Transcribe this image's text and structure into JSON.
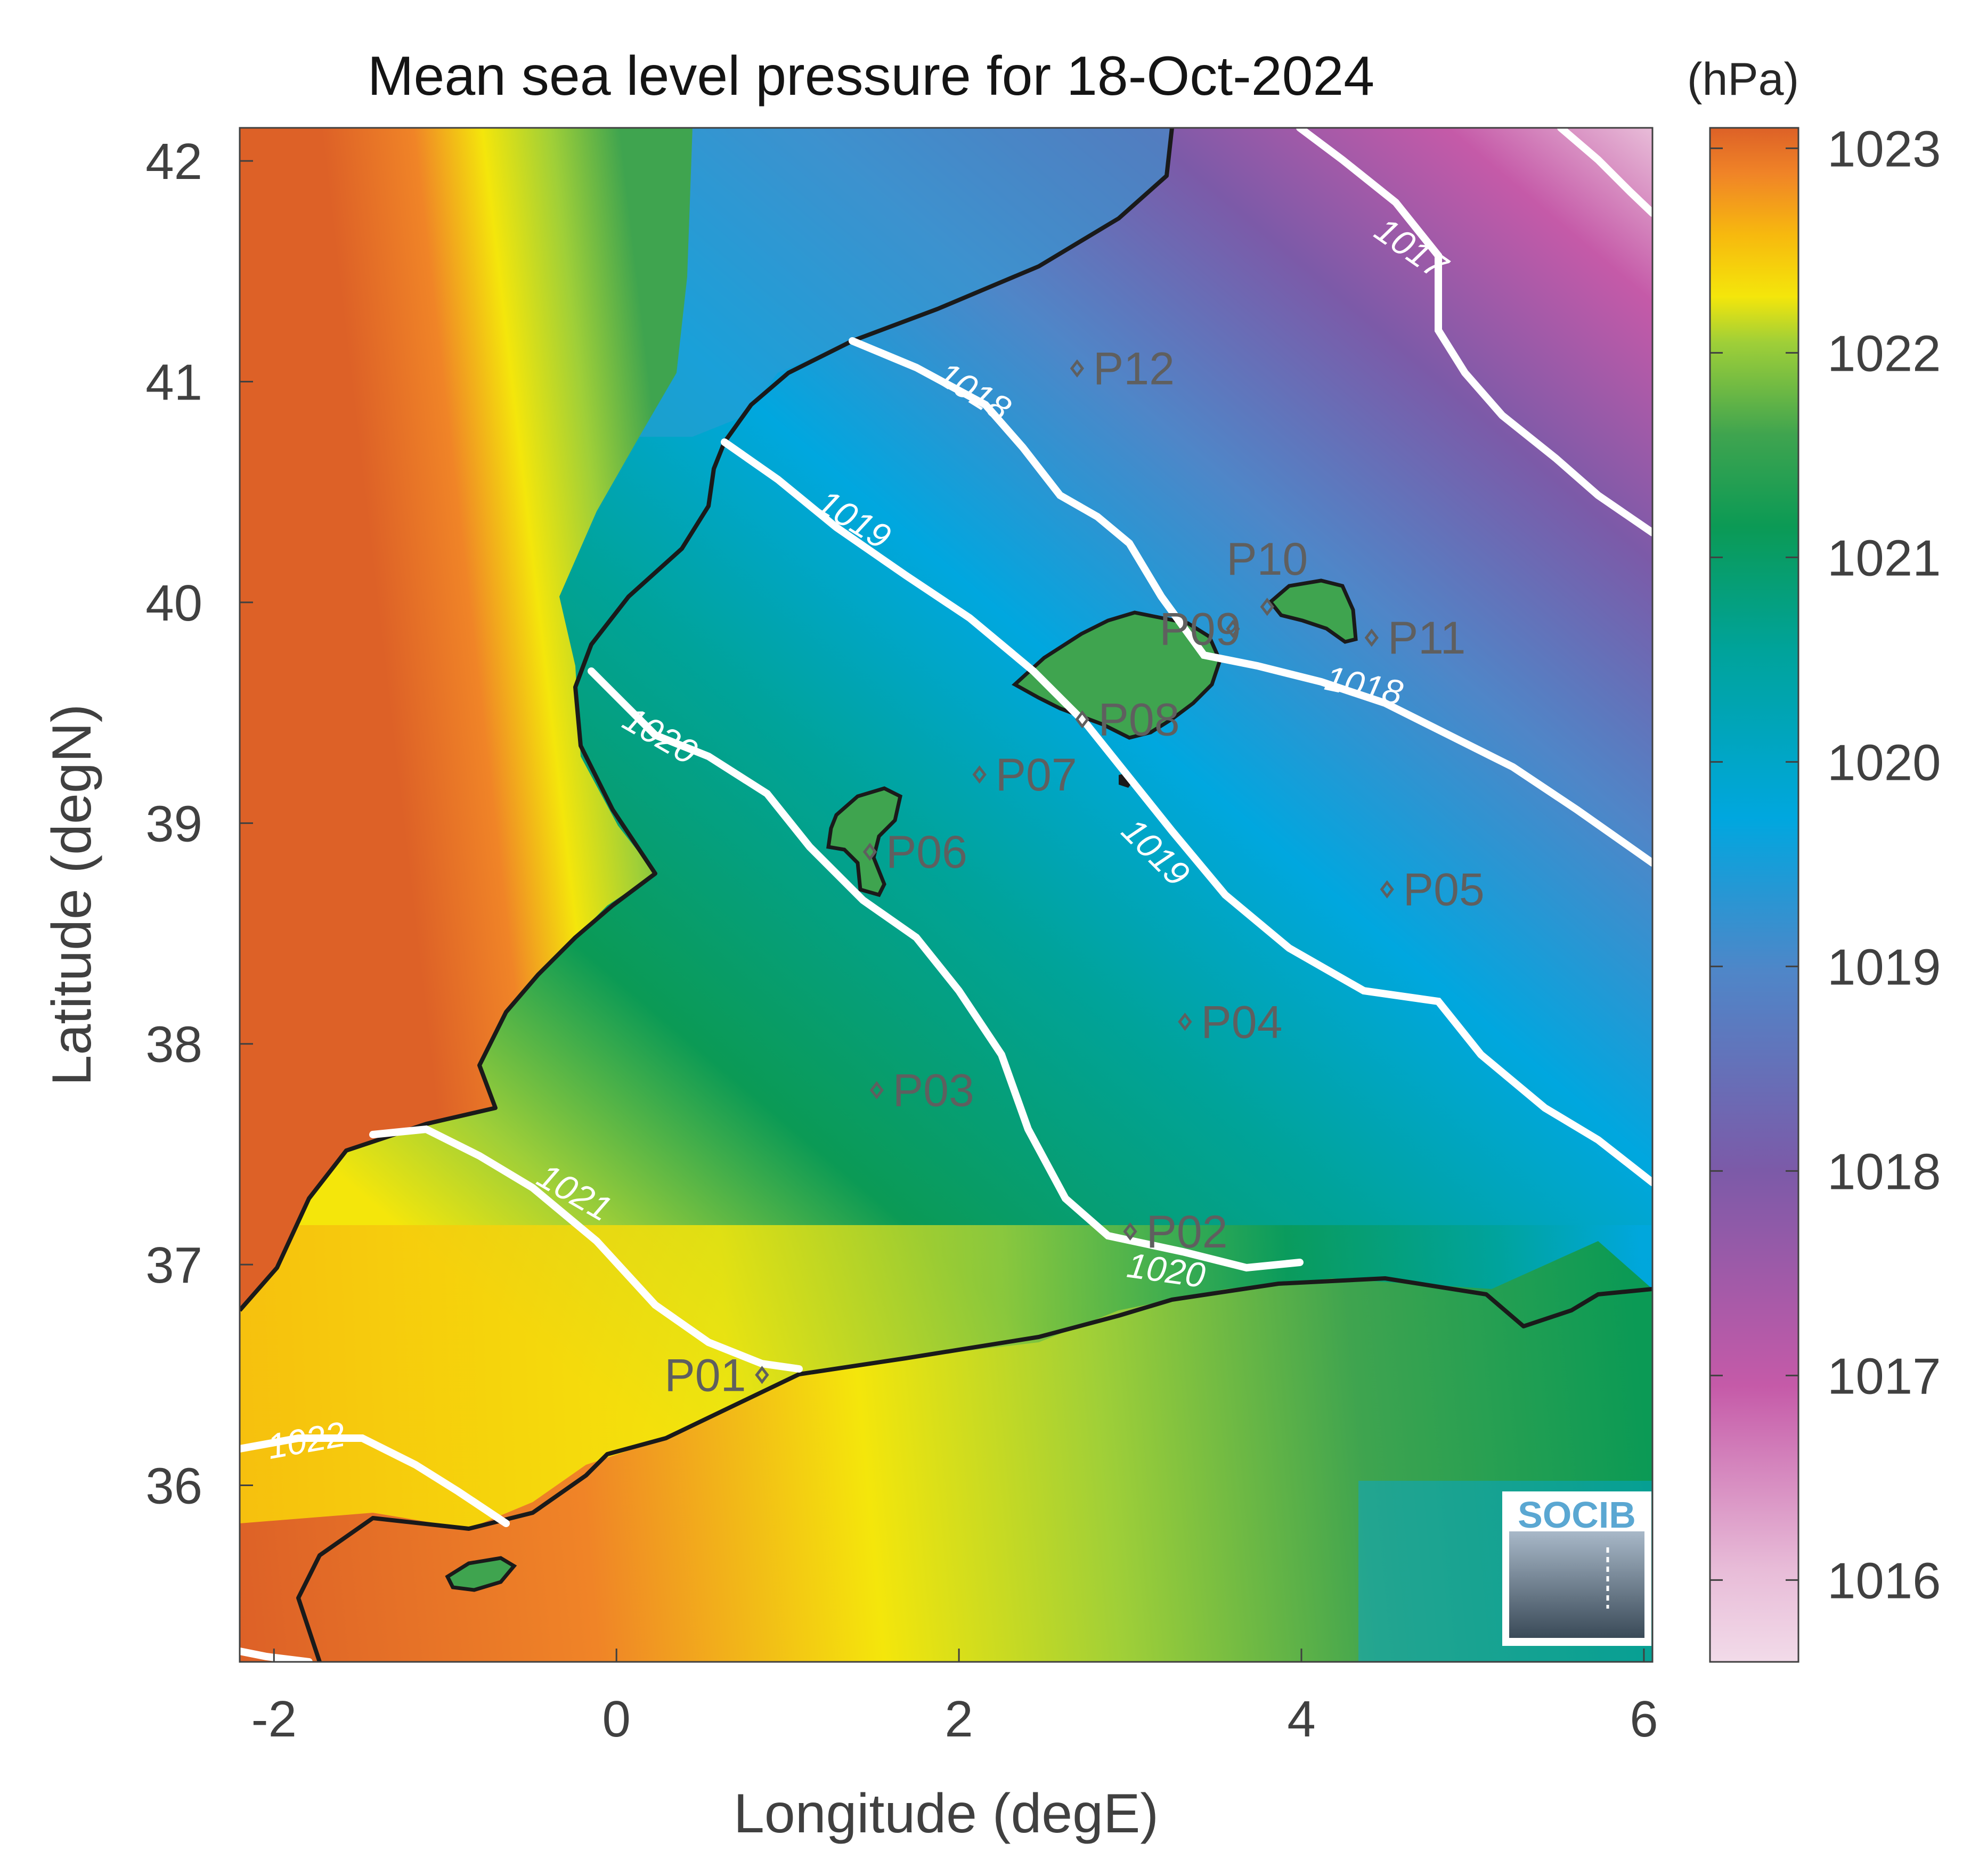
{
  "title": "Mean sea level pressure for 18-Oct-2024",
  "colorbar": {
    "unit": "(hPa)",
    "ticks": [
      "1023",
      "1022",
      "1021",
      "1020",
      "1019",
      "1018",
      "1017",
      "1016"
    ],
    "range": [
      1015.6,
      1023.1
    ]
  },
  "axes": {
    "xlabel": "Longitude (degE)",
    "ylabel": "Latitude (degN)",
    "xticks": [
      "-2",
      "0",
      "2",
      "4",
      "6"
    ],
    "yticks": [
      "42",
      "41",
      "40",
      "39",
      "38",
      "37",
      "36"
    ],
    "xlim": [
      -2.2,
      6.05
    ],
    "ylim": [
      35.2,
      42.15
    ]
  },
  "contour_labels": [
    {
      "text": "1017",
      "lon": 4.6,
      "lat": 41.56
    },
    {
      "text": "1018",
      "lon": 2.05,
      "lat": 40.91
    },
    {
      "text": "1019",
      "lon": 1.35,
      "lat": 40.33
    },
    {
      "text": "1018",
      "lon": 4.35,
      "lat": 39.57
    },
    {
      "text": "1020",
      "lon": 0.22,
      "lat": 39.35
    },
    {
      "text": "1019",
      "lon": 3.1,
      "lat": 38.83
    },
    {
      "text": "1021",
      "lon": -0.28,
      "lat": 37.28
    },
    {
      "text": "1020",
      "lon": 3.2,
      "lat": 36.92
    },
    {
      "text": "1022",
      "lon": -1.8,
      "lat": 36.15
    }
  ],
  "stations": [
    {
      "name": "P01",
      "lon": 0.85,
      "lat": 36.5
    },
    {
      "name": "P02",
      "lon": 3.0,
      "lat": 37.15
    },
    {
      "name": "P03",
      "lon": 1.52,
      "lat": 37.79
    },
    {
      "name": "P04",
      "lon": 3.32,
      "lat": 38.1
    },
    {
      "name": "P05",
      "lon": 4.5,
      "lat": 38.7
    },
    {
      "name": "P06",
      "lon": 1.48,
      "lat": 38.87
    },
    {
      "name": "P07",
      "lon": 2.12,
      "lat": 39.22
    },
    {
      "name": "P08",
      "lon": 2.72,
      "lat": 39.47
    },
    {
      "name": "P09",
      "lon": 3.6,
      "lat": 39.88
    },
    {
      "name": "P10",
      "lon": 3.8,
      "lat": 39.98
    },
    {
      "name": "P11",
      "lon": 4.41,
      "lat": 39.84
    },
    {
      "name": "P12",
      "lon": 2.69,
      "lat": 41.06
    }
  ],
  "logo": {
    "text": "SOCIB"
  },
  "colors": {
    "cmap": [
      "#e8bcd8",
      "#c55aa8",
      "#7c5aa8",
      "#4f86c8",
      "#00a7df",
      "#00a39a",
      "#0b9a55",
      "#9fcf38",
      "#f4e60b",
      "#f7b90e",
      "#f08427",
      "#dd6127"
    ],
    "land_mid": "#3fa44f",
    "coast": "#1a1a1a",
    "contour": "#ffffff"
  }
}
